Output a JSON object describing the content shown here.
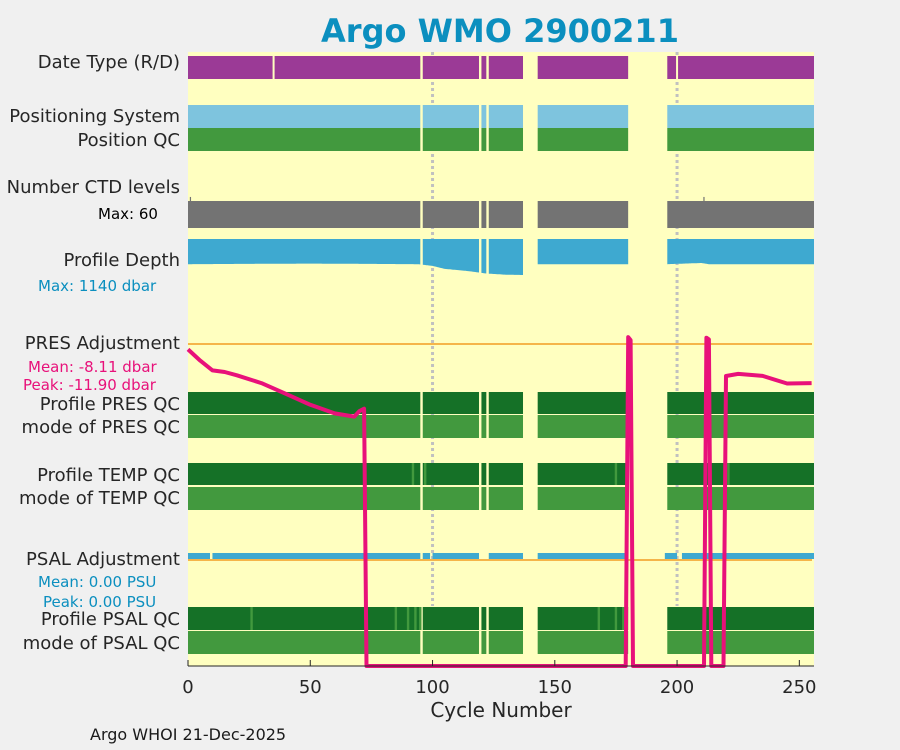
{
  "title": "Argo WMO 2900211",
  "footer": "Argo WHOI 21-Dec-2025",
  "colors": {
    "background": "#ffffc0",
    "title": "#0b8fbf",
    "date_type": "#9b3a96",
    "positioning": "#7ec4de",
    "qc_dark": "#157127",
    "qc_light": "#42993e",
    "ctd": "#737373",
    "depth": "#3ea9d0",
    "pres": "#e8117a",
    "psal": "#3ea9d0",
    "ref_line": "#f5b54a",
    "vline": "#c0c0c0"
  },
  "labels": {
    "date_type": "Date Type (R/D)",
    "positioning_system": "Positioning System",
    "position_qc": "Position QC",
    "ctd_levels": "Number CTD levels",
    "ctd_max": "Max: 60",
    "profile_depth": "Profile Depth",
    "depth_max": "Max: 1140 dbar",
    "pres_adjustment": "PRES Adjustment",
    "pres_mean": "Mean: -8.11 dbar",
    "pres_peak": "Peak: -11.90 dbar",
    "profile_pres_qc": "Profile PRES QC",
    "mode_pres_qc": "mode of PRES QC",
    "profile_temp_qc": "Profile TEMP QC",
    "mode_temp_qc": "mode of TEMP QC",
    "psal_adjustment": "PSAL Adjustment",
    "psal_mean": "Mean: 0.00 PSU",
    "psal_peak": "Peak: 0.00 PSU",
    "profile_psal_qc": "Profile PSAL QC",
    "mode_psal_qc": "mode of PSAL QC"
  },
  "chart_data": {
    "type": "timeline",
    "title": "Argo WMO 2900211",
    "xlabel": "Cycle Number",
    "xlim": [
      0,
      256
    ],
    "xticks": [
      0,
      50,
      100,
      150,
      200,
      250
    ],
    "reference_cycles": [
      100,
      200
    ],
    "data_segments": [
      [
        0,
        95
      ],
      [
        96,
        119
      ],
      [
        120,
        122
      ],
      [
        123,
        137
      ],
      [
        143,
        180
      ],
      [
        196,
        256
      ]
    ],
    "interior_gaps": [
      35,
      200
    ],
    "ctd_levels": {
      "max": 60,
      "drops": [
        [
          1,
          0.85
        ],
        [
          211,
          0.85
        ]
      ]
    },
    "profile_depth": {
      "max_dbar": 1140,
      "min_dbar": 780,
      "samples": [
        [
          0,
          800
        ],
        [
          50,
          790
        ],
        [
          94,
          800
        ],
        [
          100,
          830
        ],
        [
          105,
          880
        ],
        [
          115,
          920
        ],
        [
          122,
          960
        ],
        [
          130,
          980
        ],
        [
          137,
          985
        ],
        [
          143,
          800
        ],
        [
          180,
          800
        ],
        [
          196,
          800
        ],
        [
          210,
          780
        ],
        [
          213,
          800
        ],
        [
          256,
          800
        ]
      ]
    },
    "pres_adjustment": {
      "mean_dbar": -8.11,
      "peak_dbar": -11.9,
      "series": [
        [
          0,
          -0.2
        ],
        [
          5,
          -0.6
        ],
        [
          10,
          -1.0
        ],
        [
          15,
          -1.0
        ],
        [
          20,
          -1.2
        ],
        [
          30,
          -1.5
        ],
        [
          40,
          -1.9
        ],
        [
          50,
          -2.3
        ],
        [
          60,
          -2.6
        ],
        [
          68,
          -2.7
        ],
        [
          70,
          -2.5
        ],
        [
          72,
          -2.4
        ],
        [
          73,
          -11.9
        ],
        [
          179,
          -11.9
        ],
        [
          180,
          0.2
        ],
        [
          181,
          0.2
        ],
        [
          182,
          -11.9
        ],
        [
          211,
          -11.9
        ],
        [
          212,
          0.2
        ],
        [
          213,
          0.2
        ],
        [
          214,
          -11.9
        ],
        [
          219,
          -11.9
        ],
        [
          220,
          -1.2
        ],
        [
          225,
          -1.1
        ],
        [
          235,
          -1.2
        ],
        [
          245,
          -1.5
        ],
        [
          255,
          -1.5
        ]
      ]
    },
    "temp_qc_light_ticks": [
      92,
      97,
      175,
      221
    ],
    "psal_qc_light_ticks": [
      26,
      85,
      90,
      93,
      95,
      168,
      175,
      178
    ],
    "psal_adjustment": {
      "mean_psu": 0.0,
      "peak_psu": 0.0,
      "segments": [
        [
          0,
          9
        ],
        [
          10,
          95
        ],
        [
          96,
          99
        ],
        [
          100,
          119
        ],
        [
          123,
          137
        ],
        [
          143,
          180
        ],
        [
          195,
          200
        ],
        [
          202,
          211
        ],
        [
          212,
          256
        ]
      ]
    }
  }
}
